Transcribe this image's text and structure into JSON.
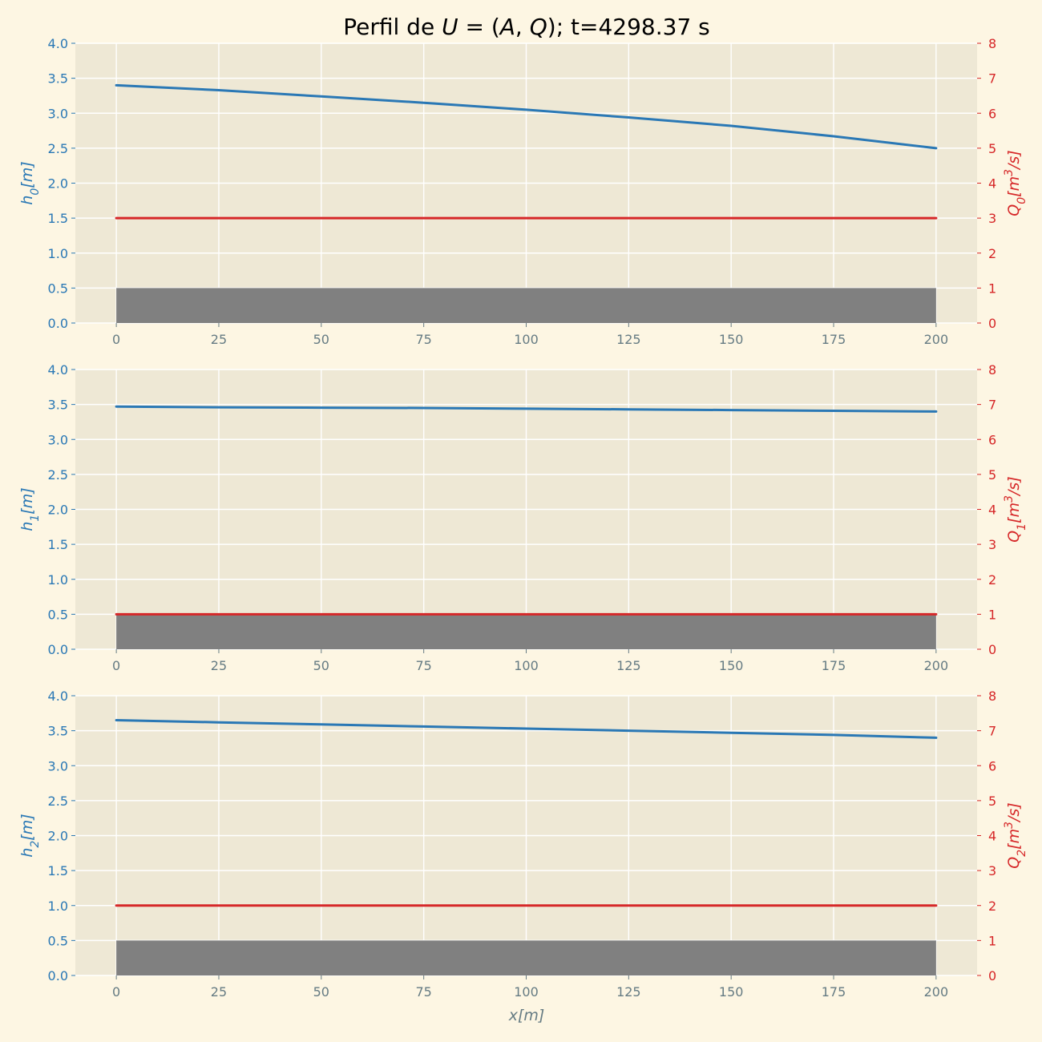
{
  "figure": {
    "title": "Perfil de U = (A, Q); t=4298.37 s",
    "xlabel": "x[m]"
  },
  "colors": {
    "figure_bg": "#fdf6e3",
    "axes_bg": "#eee8d5",
    "grid": "#ffffff",
    "h": "#2a78b5",
    "Q": "#d62728",
    "bed": "#808080",
    "xtick": "#657b83"
  },
  "chart_data": [
    {
      "type": "line",
      "x": [
        0,
        25,
        50,
        75,
        100,
        125,
        150,
        175,
        200
      ],
      "xlim": [
        -10,
        210
      ],
      "xticks": [
        0,
        25,
        50,
        75,
        100,
        125,
        150,
        175,
        200
      ],
      "ylabel_left": "h0[m]",
      "ylabel_right": "Q0[m3/s]",
      "ylim_left": [
        0,
        4
      ],
      "ylim_right": [
        0,
        8
      ],
      "yticks_left": [
        0.0,
        0.5,
        1.0,
        1.5,
        2.0,
        2.5,
        3.0,
        3.5,
        4.0
      ],
      "yticks_right": [
        0,
        1,
        2,
        3,
        4,
        5,
        6,
        7,
        8
      ],
      "grid": true,
      "series": [
        {
          "axis": "left",
          "values": [
            3.4,
            3.33,
            3.24,
            3.15,
            3.05,
            2.94,
            2.82,
            2.67,
            2.5
          ]
        },
        {
          "axis": "right",
          "values": [
            3.0,
            3.0,
            3.0,
            3.0,
            3.0,
            3.0,
            3.0,
            3.0,
            3.0
          ]
        }
      ],
      "bed": {
        "x_range": [
          0,
          200
        ],
        "height": 0.5
      }
    },
    {
      "type": "line",
      "x": [
        0,
        25,
        50,
        75,
        100,
        125,
        150,
        175,
        200
      ],
      "xlim": [
        -10,
        210
      ],
      "xticks": [
        0,
        25,
        50,
        75,
        100,
        125,
        150,
        175,
        200
      ],
      "ylabel_left": "h1[m]",
      "ylabel_right": "Q1[m3/s]",
      "ylim_left": [
        0,
        4
      ],
      "ylim_right": [
        0,
        8
      ],
      "yticks_left": [
        0.0,
        0.5,
        1.0,
        1.5,
        2.0,
        2.5,
        3.0,
        3.5,
        4.0
      ],
      "yticks_right": [
        0,
        1,
        2,
        3,
        4,
        5,
        6,
        7,
        8
      ],
      "grid": true,
      "series": [
        {
          "axis": "left",
          "values": [
            3.47,
            3.46,
            3.455,
            3.45,
            3.44,
            3.43,
            3.42,
            3.41,
            3.4
          ]
        },
        {
          "axis": "right",
          "values": [
            1.0,
            1.0,
            1.0,
            1.0,
            1.0,
            1.0,
            1.0,
            1.0,
            1.0
          ]
        }
      ],
      "bed": {
        "x_range": [
          0,
          200
        ],
        "height": 0.5
      }
    },
    {
      "type": "line",
      "x": [
        0,
        25,
        50,
        75,
        100,
        125,
        150,
        175,
        200
      ],
      "xlim": [
        -10,
        210
      ],
      "xticks": [
        0,
        25,
        50,
        75,
        100,
        125,
        150,
        175,
        200
      ],
      "ylabel_left": "h2[m]",
      "ylabel_right": "Q2[m3/s]",
      "ylim_left": [
        0,
        4
      ],
      "ylim_right": [
        0,
        8
      ],
      "yticks_left": [
        0.0,
        0.5,
        1.0,
        1.5,
        2.0,
        2.5,
        3.0,
        3.5,
        4.0
      ],
      "yticks_right": [
        0,
        1,
        2,
        3,
        4,
        5,
        6,
        7,
        8
      ],
      "grid": true,
      "series": [
        {
          "axis": "left",
          "values": [
            3.65,
            3.62,
            3.59,
            3.56,
            3.53,
            3.5,
            3.47,
            3.44,
            3.4
          ]
        },
        {
          "axis": "right",
          "values": [
            2.0,
            2.0,
            2.0,
            2.0,
            2.0,
            2.0,
            2.0,
            2.0,
            2.0
          ]
        }
      ],
      "bed": {
        "x_range": [
          0,
          200
        ],
        "height": 0.5
      }
    }
  ]
}
